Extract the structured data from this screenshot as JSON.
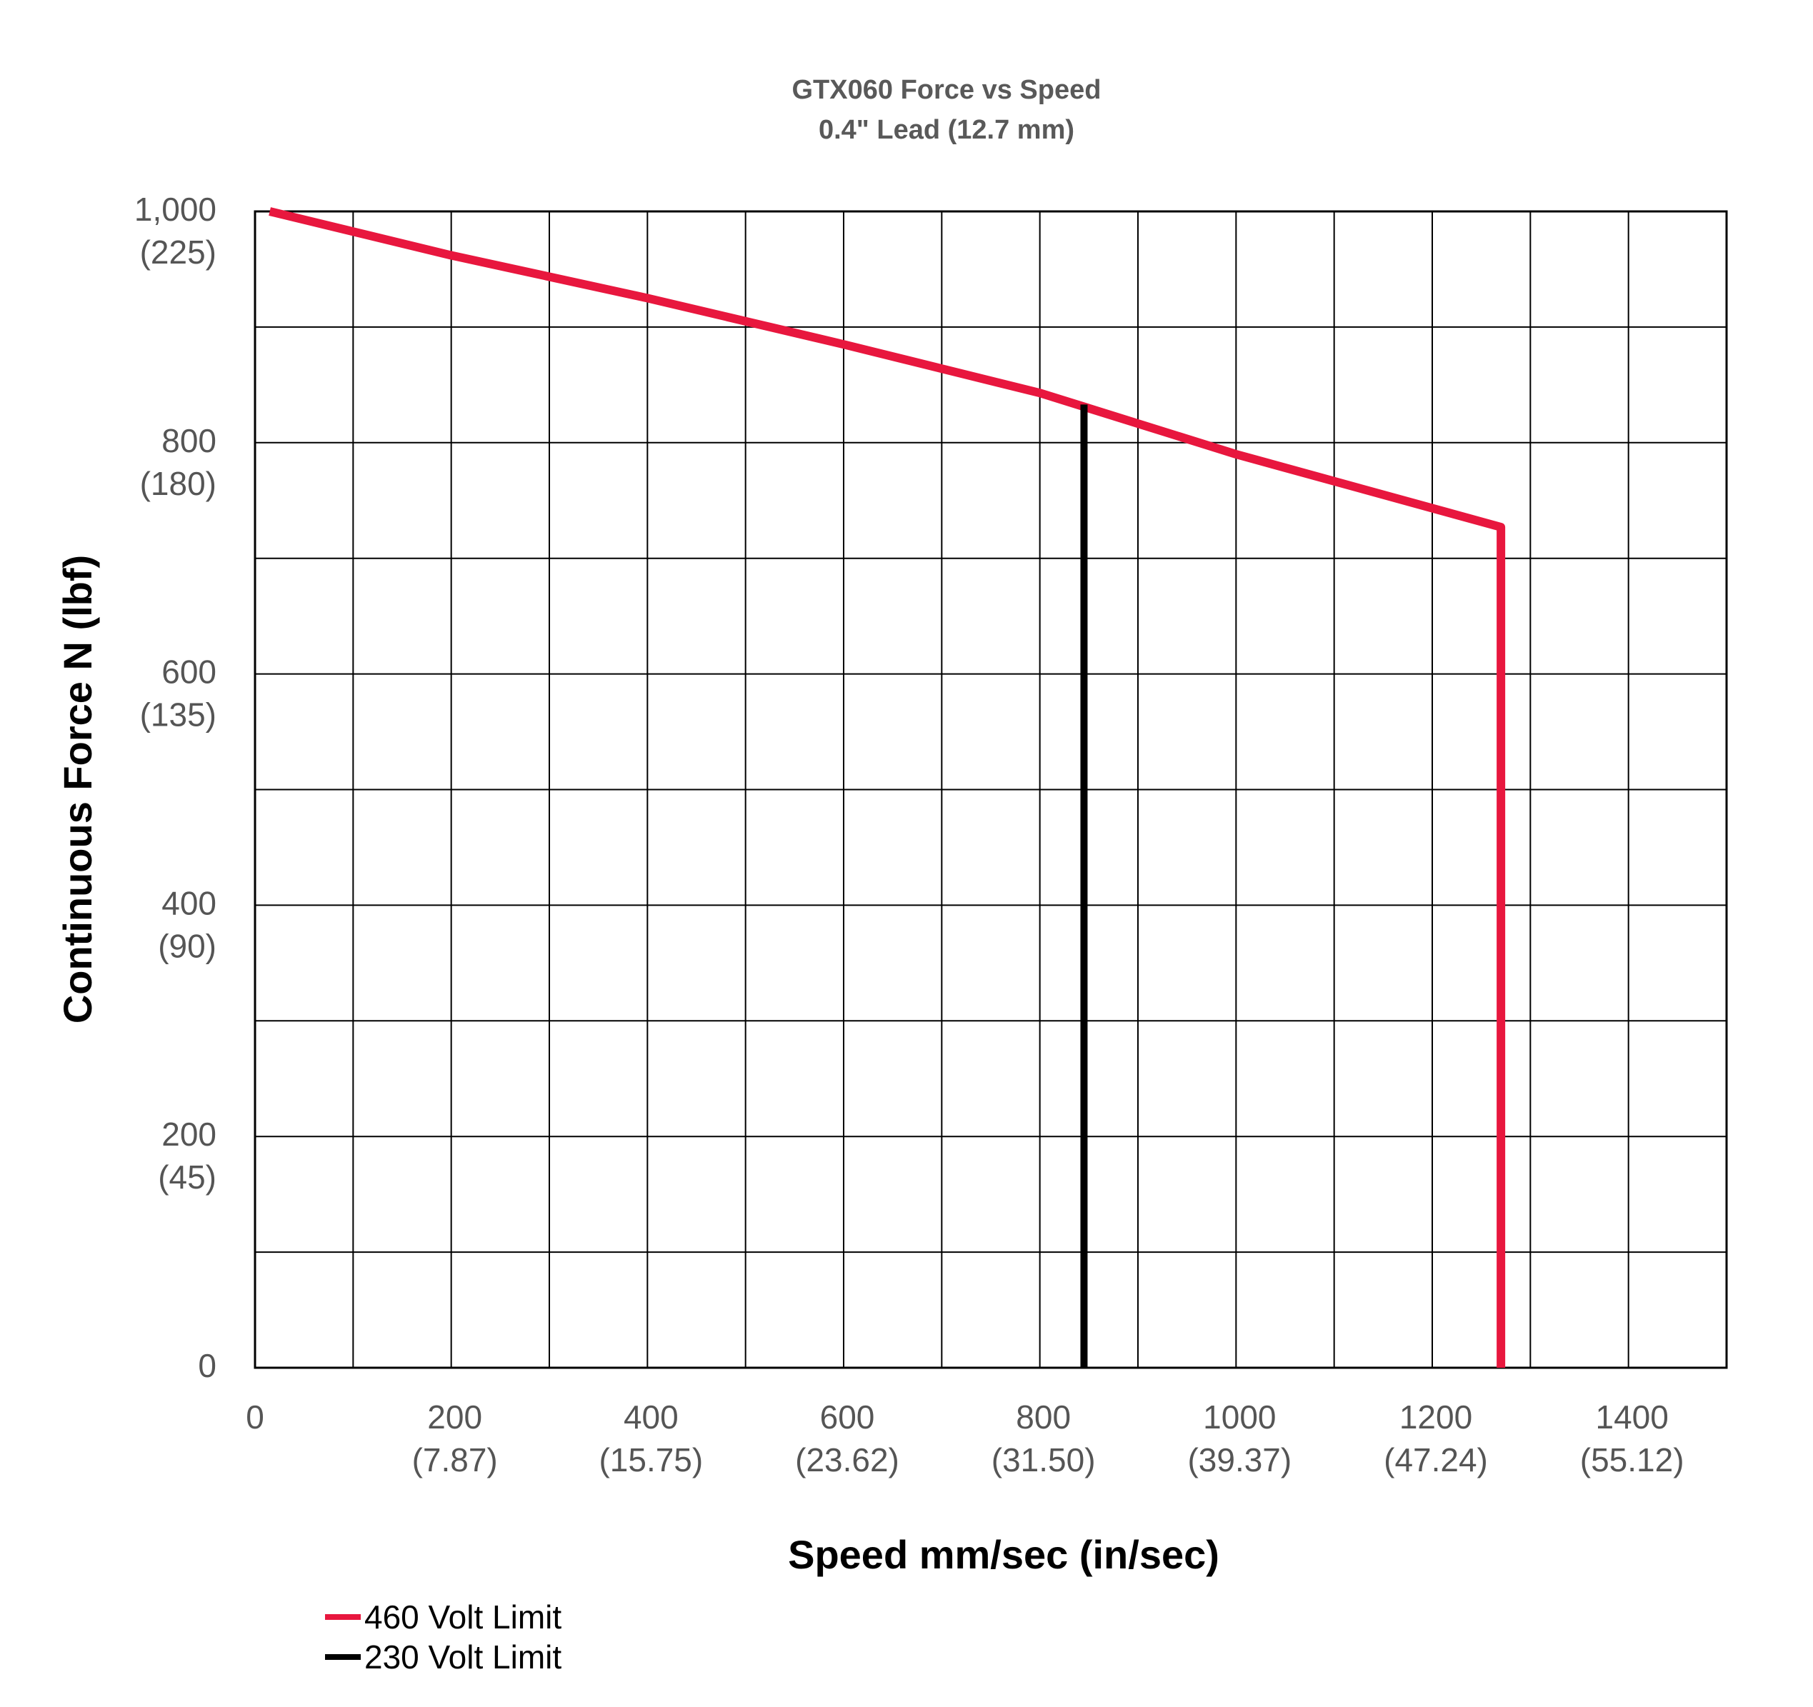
{
  "chart_data": {
    "type": "line",
    "title": "GTX060 Force vs Speed",
    "subtitle": "0.4\" Lead (12.7 mm)",
    "xlabel": "Speed mm/sec (in/sec)",
    "ylabel": "Continuous Force N (lbf)",
    "xlim": [
      0,
      1500
    ],
    "ylim": [
      0,
      1000
    ],
    "x_ticks": [
      {
        "value": 0,
        "label": "0",
        "sub": ""
      },
      {
        "value": 200,
        "label": "200",
        "sub": "(7.87)"
      },
      {
        "value": 400,
        "label": "400",
        "sub": "(15.75)"
      },
      {
        "value": 600,
        "label": "600",
        "sub": "(23.62)"
      },
      {
        "value": 800,
        "label": "800",
        "sub": "(31.50)"
      },
      {
        "value": 1000,
        "label": "1000",
        "sub": "(39.37)"
      },
      {
        "value": 1200,
        "label": "1200",
        "sub": "(47.24)"
      },
      {
        "value": 1400,
        "label": "1400",
        "sub": "(55.12)"
      }
    ],
    "y_ticks": [
      {
        "value": 0,
        "label": "0",
        "sub": ""
      },
      {
        "value": 200,
        "label": "200",
        "sub": "(45)"
      },
      {
        "value": 400,
        "label": "400",
        "sub": "(90)"
      },
      {
        "value": 600,
        "label": "600",
        "sub": "(135)"
      },
      {
        "value": 800,
        "label": "800",
        "sub": "(180)"
      },
      {
        "value": 1000,
        "label": "1,000",
        "sub": "(225)"
      }
    ],
    "grid": {
      "x_step": 100,
      "y_step": 100,
      "visible": true
    },
    "legend_position": "bottom-left",
    "series": [
      {
        "name": "460 Volt Limit",
        "color": "#e8173e",
        "points": [
          [
            15,
            1000
          ],
          [
            200,
            962
          ],
          [
            400,
            925
          ],
          [
            600,
            885
          ],
          [
            800,
            843
          ],
          [
            1000,
            790
          ],
          [
            1270,
            727
          ],
          [
            1270,
            0
          ]
        ]
      },
      {
        "name": "230 Volt Limit",
        "color": "#000000",
        "points": [
          [
            845,
            833
          ],
          [
            845,
            0
          ]
        ]
      }
    ]
  }
}
